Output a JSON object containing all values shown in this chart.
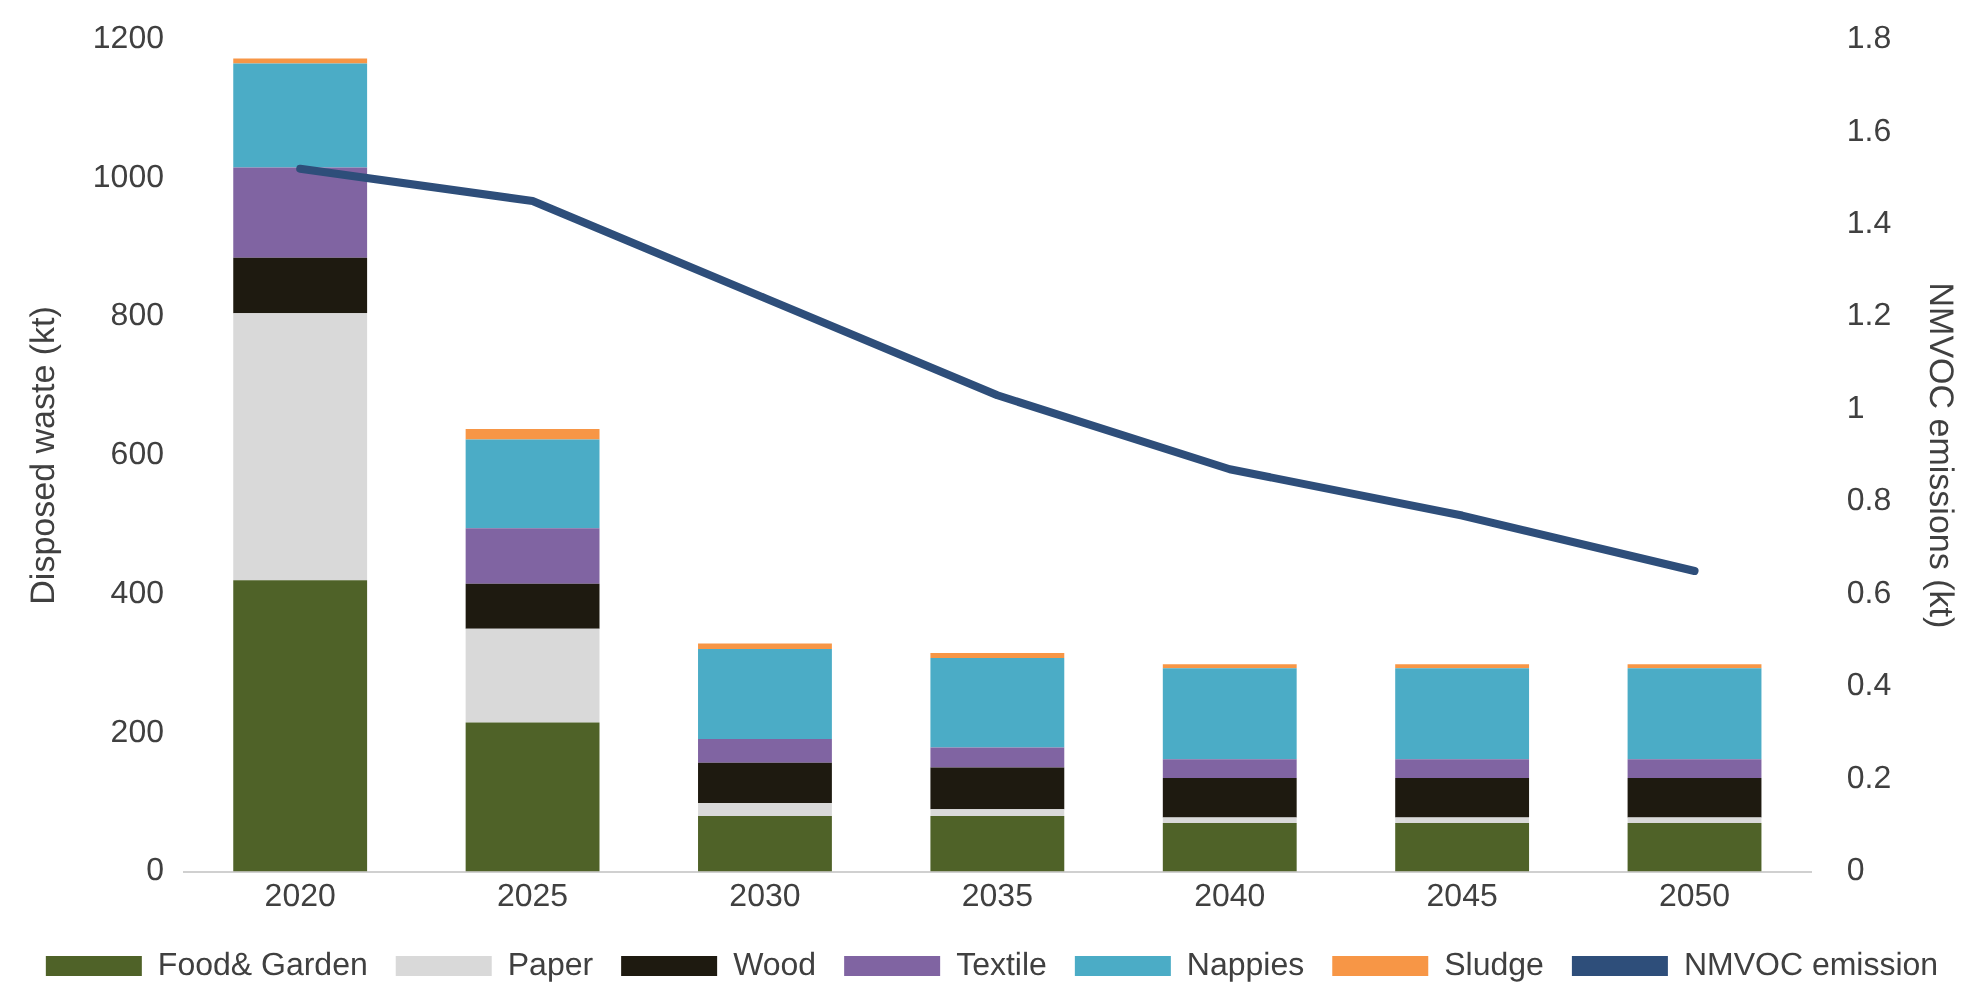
{
  "chart_data": {
    "type": "bar",
    "stacked": true,
    "categories": [
      "2020",
      "2025",
      "2030",
      "2035",
      "2040",
      "2045",
      "2050"
    ],
    "ylabel": "Disposed waste (kt)",
    "y2label": "NMVOC emissions (kt)",
    "ylim": [
      0,
      1200
    ],
    "yticks": [
      0,
      200,
      400,
      600,
      800,
      1000,
      1200
    ],
    "y2lim": [
      0,
      1.8
    ],
    "y2ticks": [
      0,
      0.2,
      0.4,
      0.6,
      0.8,
      1,
      1.2,
      1.4,
      1.6,
      1.8
    ],
    "grid": false,
    "legend": "bottom",
    "marker": "none",
    "line_style": "solid",
    "series": [
      {
        "name": "Food& Garden",
        "color": "#4f6228",
        "values": [
          420,
          215,
          80,
          80,
          70,
          70,
          70
        ]
      },
      {
        "name": "Paper",
        "color": "#d9d9d9",
        "values": [
          385,
          135,
          19,
          10,
          8,
          8,
          8
        ]
      },
      {
        "name": "Wood",
        "color": "#1e1a10",
        "values": [
          80,
          65,
          58,
          60,
          57,
          57,
          57
        ]
      },
      {
        "name": "Textile",
        "color": "#8064a2",
        "values": [
          130,
          80,
          34,
          29,
          27,
          27,
          27
        ]
      },
      {
        "name": "Nappies",
        "color": "#4bacc6",
        "values": [
          150,
          128,
          130,
          129,
          131,
          131,
          131
        ]
      },
      {
        "name": "Sludge",
        "color": "#f79646",
        "values": [
          7,
          15,
          8,
          7,
          6,
          6,
          6
        ]
      },
      {
        "name": "NMVOC emission",
        "type": "line",
        "axis": "y2",
        "color": "#2e4e7a",
        "values": [
          1.52,
          1.45,
          1.24,
          1.03,
          0.87,
          0.77,
          0.65
        ]
      }
    ]
  }
}
